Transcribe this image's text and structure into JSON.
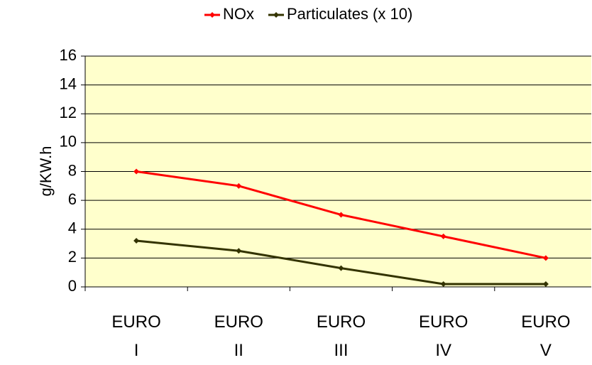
{
  "chart_data": {
    "type": "line",
    "ylabel": "g/KW.h",
    "categories": [
      "EURO I",
      "EURO II",
      "EURO III",
      "EURO IV",
      "EURO V"
    ],
    "series": [
      {
        "name": "NOx",
        "color": "#ff0000",
        "values": [
          8,
          7,
          5,
          3.5,
          2
        ]
      },
      {
        "name": "Particulates (x 10)",
        "color": "#333300",
        "values": [
          3.2,
          2.5,
          1.3,
          0.2,
          0.2
        ]
      }
    ],
    "ylim": [
      0,
      16
    ],
    "yticks": [
      0,
      2,
      4,
      6,
      8,
      10,
      12,
      14,
      16
    ],
    "grid": true,
    "legend": "top",
    "background": "#ffffcc"
  }
}
